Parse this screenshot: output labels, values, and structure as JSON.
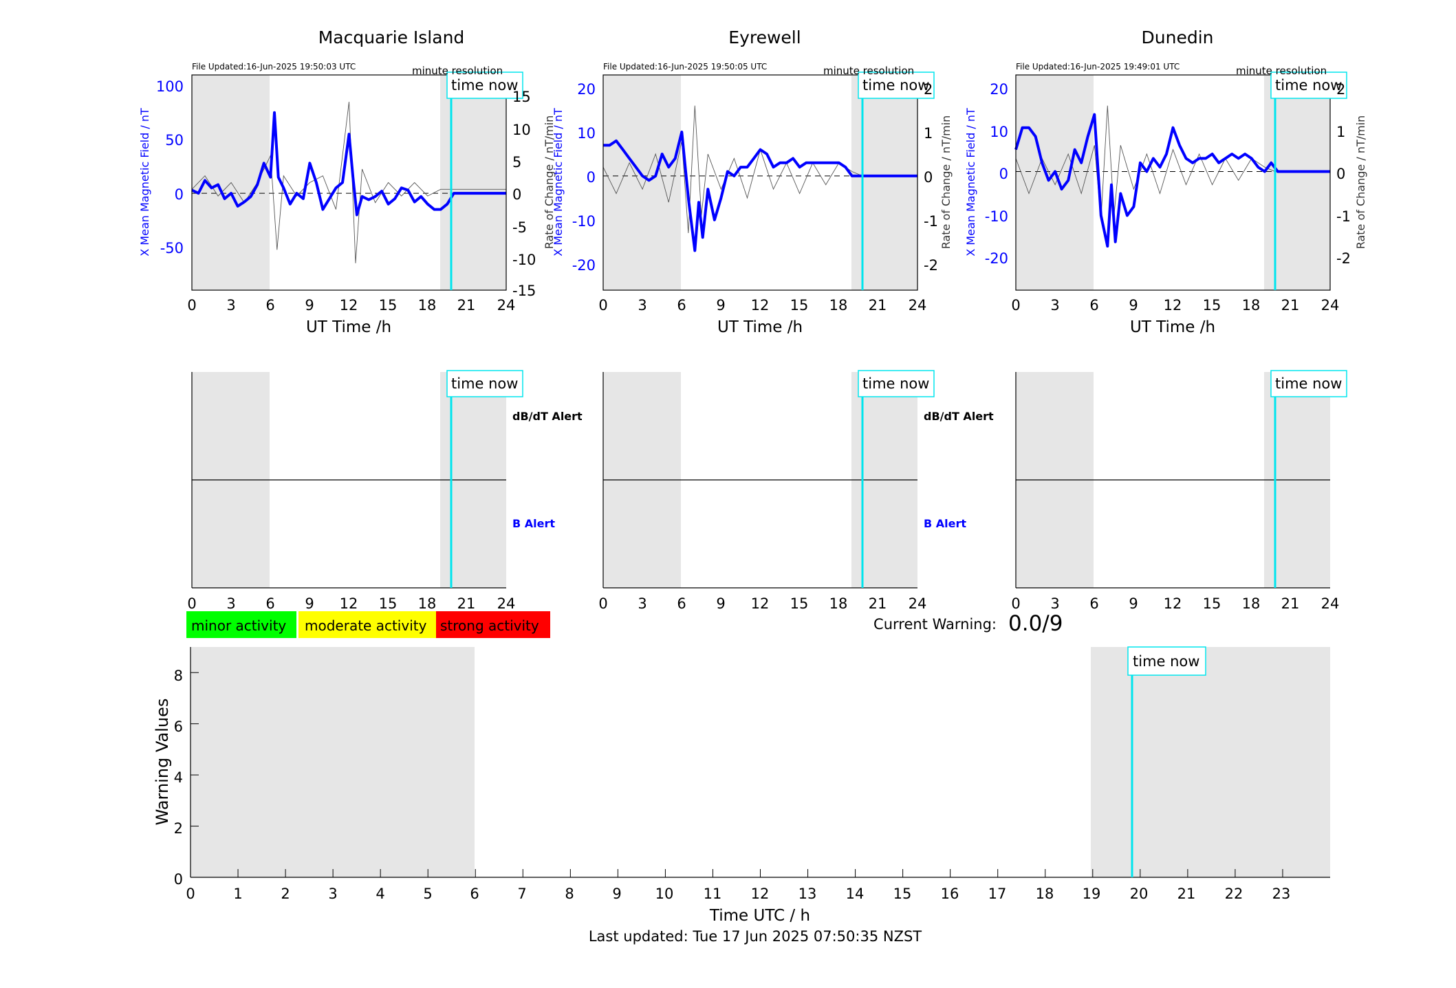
{
  "stations": [
    {
      "title": "Macquarie Island",
      "file_updated": "File Updated:16-Jun-2025 19:50:03 UTC",
      "resolution_label": "minute resolution",
      "time_now_label": "time now",
      "x_label": "UT Time /h",
      "y_left_label": "X Mean Magnetic Field / nT",
      "y_right_label": "Rate of Change / nT/min",
      "x_ticks": [
        "0",
        "3",
        "6",
        "9",
        "12",
        "15",
        "18",
        "21",
        "24"
      ],
      "y_left_ticks": [
        "100",
        "50",
        "0",
        "-50"
      ],
      "y_right_ticks": [
        "15",
        "10",
        "5",
        "0",
        "-5",
        "-10",
        "-15"
      ],
      "dbdt_alert_label": "dB/dT Alert",
      "b_alert_label": "B Alert"
    },
    {
      "title": "Eyrewell",
      "file_updated": "File Updated:16-Jun-2025 19:50:05 UTC",
      "resolution_label": "minute resolution",
      "time_now_label": "time now",
      "x_label": "UT Time /h",
      "y_left_label": "X Mean Magnetic Field / nT",
      "y_right_label": "Rate of Change / nT/min",
      "x_ticks": [
        "0",
        "3",
        "6",
        "9",
        "12",
        "15",
        "18",
        "21",
        "24"
      ],
      "y_left_ticks": [
        "20",
        "10",
        "0",
        "-10",
        "-20"
      ],
      "y_right_ticks": [
        "2",
        "1",
        "0",
        "-1",
        "-2"
      ],
      "dbdt_alert_label": "dB/dT Alert",
      "b_alert_label": "B Alert"
    },
    {
      "title": "Dunedin",
      "file_updated": "File Updated:16-Jun-2025 19:49:01 UTC",
      "resolution_label": "minute resolution",
      "time_now_label": "time now",
      "x_label": "UT Time /h",
      "y_left_label": "X Mean Magnetic Field / nT",
      "y_right_label": "Rate of Change / nT/min",
      "x_ticks": [
        "0",
        "3",
        "6",
        "9",
        "12",
        "15",
        "18",
        "21",
        "24"
      ],
      "y_left_ticks": [
        "20",
        "10",
        "0",
        "-10",
        "-20"
      ],
      "y_right_ticks": [
        "2",
        "1",
        "0",
        "-1",
        "-2"
      ],
      "dbdt_alert_label": "",
      "b_alert_label": ""
    }
  ],
  "legend": {
    "minor": "minor activity",
    "moderate": "moderate activity",
    "strong": "strong activity"
  },
  "current_warning": {
    "label": "Current Warning:",
    "value": "0.0/9"
  },
  "warning_panel": {
    "y_label": "Warning Values",
    "x_label": "Time UTC / h",
    "y_ticks": [
      "8",
      "6",
      "4",
      "2",
      "0"
    ],
    "x_ticks": [
      "0",
      "1",
      "2",
      "3",
      "4",
      "5",
      "6",
      "7",
      "8",
      "9",
      "10",
      "11",
      "12",
      "13",
      "14",
      "15",
      "16",
      "17",
      "18",
      "19",
      "20",
      "21",
      "22",
      "23"
    ],
    "time_now_label": "time now"
  },
  "last_updated": "Last updated: Tue 17 Jun 2025 07:50:35 NZST",
  "colors": {
    "field": "#0000ff",
    "rate": "#555555",
    "time_now": "#00e5ee",
    "shade": "#e6e6e6",
    "minor": "#00ff00",
    "moderate": "#ffff00",
    "strong": "#ff0000",
    "b_alert_text": "#0000ff"
  },
  "chart_data": [
    {
      "type": "line",
      "station": "Macquarie Island",
      "x_range": [
        0,
        24
      ],
      "ylim_left": [
        -90,
        110
      ],
      "ylim_right": [
        -15,
        17
      ],
      "shaded_intervals_hours": [
        [
          0,
          6
        ],
        [
          19,
          24
        ]
      ],
      "time_now_hours": 19.83,
      "series": [
        {
          "axis": "left",
          "x": [
            0,
            0.5,
            1,
            1.5,
            2,
            2.5,
            3,
            3.5,
            4,
            4.5,
            5,
            5.5,
            6,
            6.3,
            6.6,
            7,
            7.5,
            8,
            8.5,
            9,
            9.5,
            10,
            10.5,
            11,
            11.5,
            12,
            12.3,
            12.6,
            13,
            13.5,
            14,
            14.5,
            15,
            15.5,
            16,
            16.5,
            17,
            17.5,
            18,
            18.5,
            19,
            19.5,
            20,
            24
          ],
          "y": [
            3,
            0,
            12,
            5,
            8,
            -5,
            0,
            -12,
            -8,
            -3,
            8,
            28,
            15,
            75,
            15,
            5,
            -10,
            0,
            -5,
            28,
            10,
            -15,
            -5,
            5,
            10,
            55,
            15,
            -20,
            -3,
            -6,
            -3,
            2,
            -10,
            -5,
            5,
            3,
            -8,
            -3,
            -10,
            -15,
            -15,
            -10,
            0,
            0
          ]
        },
        {
          "axis": "right",
          "x": [
            0,
            1,
            2,
            3,
            4,
            5,
            6,
            6.5,
            7,
            8,
            9,
            10,
            11,
            12,
            12.5,
            13,
            14,
            15,
            16,
            17,
            18,
            19,
            19.8,
            24
          ],
          "y": [
            0,
            2,
            -1,
            1,
            -2,
            1,
            5,
            -9,
            2,
            -1,
            1,
            2,
            -3,
            13,
            -11,
            3,
            -2,
            1,
            -1,
            1,
            -1,
            0,
            0,
            0
          ]
        }
      ]
    },
    {
      "type": "line",
      "station": "Eyrewell",
      "x_range": [
        0,
        24
      ],
      "ylim_left": [
        -26,
        23
      ],
      "ylim_right": [
        -2.6,
        2.3
      ],
      "shaded_intervals_hours": [
        [
          0,
          6
        ],
        [
          19,
          24
        ]
      ],
      "time_now_hours": 19.83,
      "series": [
        {
          "axis": "left",
          "x": [
            0,
            0.5,
            1,
            1.5,
            2,
            2.5,
            3,
            3.5,
            4,
            4.5,
            5,
            5.5,
            6,
            6.5,
            7,
            7.3,
            7.6,
            8,
            8.5,
            9,
            9.5,
            10,
            10.5,
            11,
            11.5,
            12,
            12.5,
            13,
            13.5,
            14,
            14.5,
            15,
            15.5,
            16,
            16.5,
            17,
            17.5,
            18,
            18.5,
            19,
            19.5,
            20,
            24
          ],
          "y": [
            7,
            7,
            8,
            6,
            4,
            2,
            0,
            -1,
            0,
            5,
            2,
            4,
            10,
            -5,
            -17,
            -6,
            -14,
            -3,
            -10,
            -5,
            1,
            0,
            2,
            2,
            4,
            6,
            5,
            2,
            3,
            3,
            4,
            2,
            3,
            3,
            3,
            3,
            3,
            3,
            2,
            0,
            0,
            0,
            0
          ]
        },
        {
          "axis": "right",
          "x": [
            0,
            1,
            2,
            3,
            4,
            5,
            6,
            6.5,
            7,
            7.5,
            8,
            9,
            10,
            11,
            12,
            13,
            14,
            15,
            16,
            17,
            18,
            19,
            19.8,
            24
          ],
          "y": [
            0.2,
            -0.4,
            0.3,
            -0.3,
            0.5,
            -0.6,
            0.8,
            -1.3,
            1.6,
            -0.9,
            0.5,
            -0.3,
            0.4,
            -0.5,
            0.6,
            -0.3,
            0.3,
            -0.4,
            0.3,
            -0.2,
            0.3,
            0.1,
            0,
            0
          ]
        }
      ]
    },
    {
      "type": "line",
      "station": "Dunedin",
      "x_range": [
        0,
        24
      ],
      "ylim_left": [
        -27,
        22
      ],
      "ylim_right": [
        -2.7,
        2.2
      ],
      "shaded_intervals_hours": [
        [
          0,
          6
        ],
        [
          19,
          24
        ]
      ],
      "time_now_hours": 19.83,
      "series": [
        {
          "axis": "left",
          "x": [
            0,
            0.5,
            1,
            1.5,
            2,
            2.5,
            3,
            3.5,
            4,
            4.5,
            5,
            5.5,
            6,
            6.5,
            7,
            7.3,
            7.6,
            8,
            8.5,
            9,
            9.5,
            10,
            10.5,
            11,
            11.5,
            12,
            12.5,
            13,
            13.5,
            14,
            14.5,
            15,
            15.5,
            16,
            16.5,
            17,
            17.5,
            18,
            18.5,
            19,
            19.5,
            20,
            24
          ],
          "y": [
            5,
            10,
            10,
            8,
            2,
            -2,
            0,
            -4,
            -2,
            5,
            2,
            8,
            13,
            -10,
            -17,
            -3,
            -16,
            -5,
            -10,
            -8,
            2,
            0,
            3,
            1,
            4,
            10,
            6,
            3,
            2,
            3,
            3,
            4,
            2,
            3,
            4,
            3,
            4,
            3,
            1,
            0,
            2,
            0,
            0
          ]
        },
        {
          "axis": "right",
          "x": [
            0,
            1,
            2,
            3,
            4,
            5,
            6,
            6.5,
            7,
            7.5,
            8,
            9,
            10,
            11,
            12,
            13,
            14,
            15,
            16,
            17,
            18,
            19,
            19.8,
            24
          ],
          "y": [
            0.3,
            -0.5,
            0.3,
            -0.3,
            0.4,
            -0.5,
            0.6,
            -1.1,
            1.5,
            -1.0,
            0.6,
            -0.4,
            0.4,
            -0.5,
            0.5,
            -0.3,
            0.4,
            -0.3,
            0.3,
            -0.2,
            0.3,
            0.1,
            0,
            0
          ]
        }
      ]
    },
    {
      "type": "line",
      "panel": "alerts",
      "x_range": [
        0,
        24
      ],
      "shaded_intervals_hours": [
        [
          0,
          6
        ],
        [
          19,
          24
        ]
      ],
      "time_now_hours": 19.83,
      "series": []
    },
    {
      "type": "line",
      "panel": "warning",
      "x_range": [
        0,
        24
      ],
      "ylim": [
        0,
        9
      ],
      "shaded_intervals_hours": [
        [
          0,
          6
        ],
        [
          19,
          24
        ]
      ],
      "time_now_hours": 19.83,
      "series": []
    }
  ]
}
